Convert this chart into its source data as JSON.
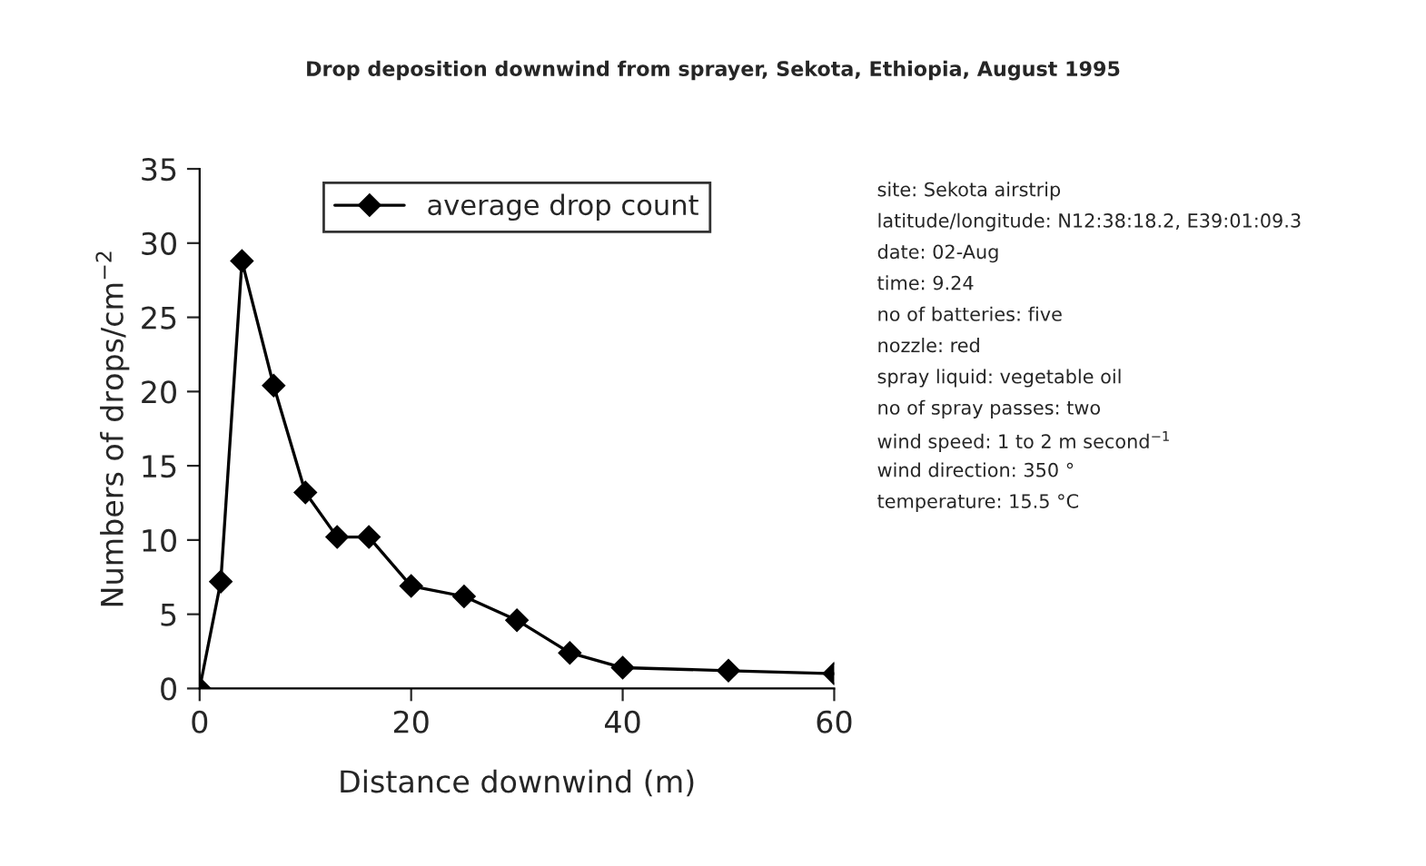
{
  "chart_data": {
    "type": "line",
    "title": "Drop deposition downwind from sprayer, Sekota, Ethiopia, August 1995",
    "xlabel": "Distance downwind (m)",
    "ylabel": "Numbers of drops/cm$^{−2}$",
    "x": [
      0,
      2,
      4,
      7,
      10,
      13,
      16,
      20,
      25,
      30,
      35,
      40,
      50,
      60
    ],
    "series": [
      {
        "name": "average drop count",
        "color": "#000000",
        "values": [
          0,
          7.2,
          28.8,
          20.4,
          13.2,
          10.2,
          10.2,
          6.9,
          6.2,
          4.6,
          2.4,
          1.4,
          1.2,
          1.0
        ]
      }
    ],
    "xlim": [
      0,
      60
    ],
    "xticks": [
      0,
      20,
      40,
      60
    ],
    "ylim": [
      0,
      35
    ],
    "yticks": [
      0,
      5,
      10,
      15,
      20,
      25,
      30,
      35
    ],
    "marker": "diamond",
    "line_style": "solid",
    "grid": false,
    "legend": "top",
    "annotations": [
      "site: Sekota airstrip",
      "latitude/longitude: N12:38:18.2, E39:01:09.3",
      "date: 02-Aug",
      "time: 9.24",
      "no of batteries: five",
      "nozzle: red",
      "spray liquid: vegetable oil",
      "no of spray passes: two",
      "wind speed: 1 to 2 m second$^{−1}$",
      "wind direction: 350 °",
      "temperature: 15.5 °C"
    ]
  }
}
